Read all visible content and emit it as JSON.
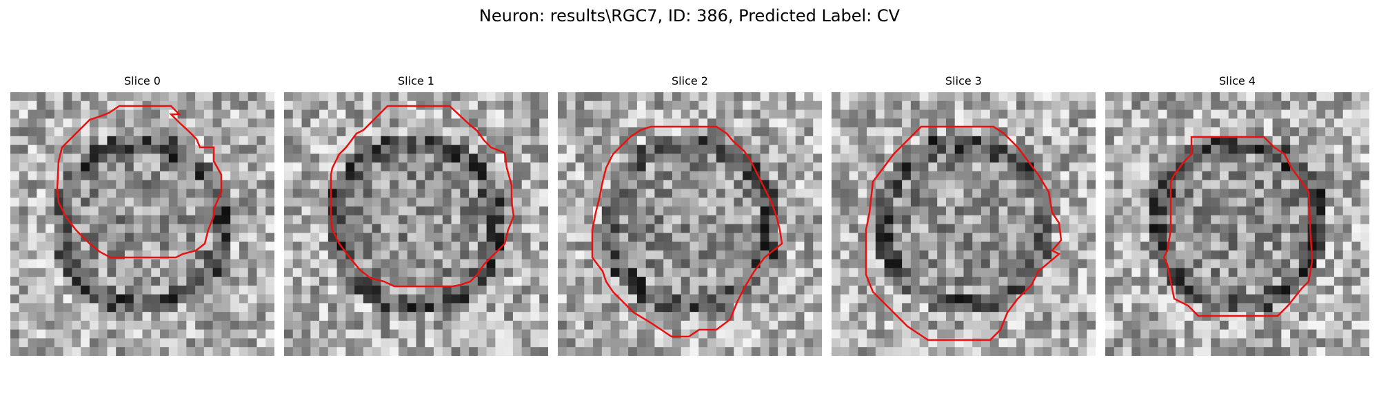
{
  "figure": {
    "title": "Neuron: results\\RGC7, ID: 386, Predicted Label: CV",
    "panels": [
      {
        "title": "Slice 0",
        "pixel_seed": 11
      },
      {
        "title": "Slice 1",
        "pixel_seed": 23
      },
      {
        "title": "Slice 2",
        "pixel_seed": 37
      },
      {
        "title": "Slice 3",
        "pixel_seed": 51
      },
      {
        "title": "Slice 4",
        "pixel_seed": 67
      }
    ],
    "colors": {
      "contour": "#e8110f",
      "background": "#ffffff"
    },
    "image_grid_size": 30
  }
}
